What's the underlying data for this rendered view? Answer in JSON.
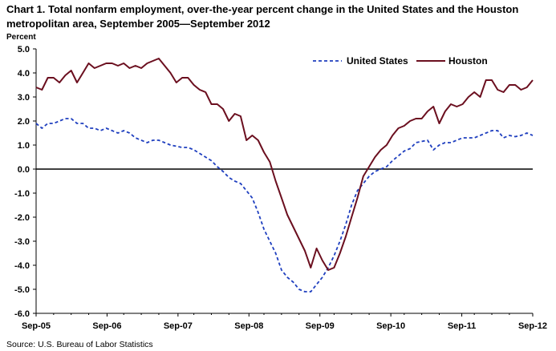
{
  "title": "Chart 1. Total nonfarm employment, over-the-year percent change in the United States and the Houston metropolitan area, September 2005—September 2012",
  "source": "Source: U.S. Bureau of Labor Statistics",
  "chart_data": {
    "type": "line",
    "title": "Chart 1. Total nonfarm employment, over-the-year percent change in the United States and the Houston metropolitan area, September 2005—September 2012",
    "ylabel": "Percent",
    "xlabel": "",
    "ylim": [
      -6.0,
      5.0
    ],
    "yticks": [
      "5.0",
      "4.0",
      "3.0",
      "2.0",
      "1.0",
      "0.0",
      "-1.0",
      "-2.0",
      "-3.0",
      "-4.0",
      "-5.0",
      "-6.0"
    ],
    "xticks": [
      "Sep-05",
      "Sep-06",
      "Sep-07",
      "Sep-08",
      "Sep-09",
      "Sep-10",
      "Sep-11",
      "Sep-12"
    ],
    "x_start": "Sep-05",
    "x_end": "Sep-12",
    "grid": false,
    "legend_position": "top-right",
    "series": [
      {
        "name": "United States",
        "color": "#1f3fbf",
        "dash": "dashed",
        "values": [
          1.9,
          1.7,
          1.9,
          1.9,
          2.0,
          2.1,
          2.1,
          1.9,
          1.9,
          1.7,
          1.7,
          1.6,
          1.7,
          1.6,
          1.5,
          1.6,
          1.5,
          1.3,
          1.2,
          1.1,
          1.2,
          1.2,
          1.1,
          1.0,
          0.95,
          0.9,
          0.9,
          0.8,
          0.65,
          0.5,
          0.35,
          0.1,
          -0.1,
          -0.35,
          -0.5,
          -0.6,
          -0.9,
          -1.2,
          -1.8,
          -2.5,
          -3.0,
          -3.5,
          -4.2,
          -4.5,
          -4.7,
          -5.0,
          -5.1,
          -5.1,
          -4.8,
          -4.5,
          -4.1,
          -3.6,
          -3.0,
          -2.3,
          -1.5,
          -0.9,
          -0.6,
          -0.3,
          -0.1,
          0.0,
          0.1,
          0.35,
          0.55,
          0.75,
          0.85,
          1.1,
          1.15,
          1.2,
          0.8,
          1.0,
          1.1,
          1.1,
          1.2,
          1.3,
          1.3,
          1.3,
          1.4,
          1.5,
          1.6,
          1.6,
          1.3,
          1.4,
          1.35,
          1.4,
          1.5,
          1.4
        ]
      },
      {
        "name": "Houston",
        "color": "#6b0f1f",
        "dash": "solid",
        "values": [
          3.4,
          3.3,
          3.8,
          3.8,
          3.6,
          3.9,
          4.1,
          3.6,
          4.0,
          4.4,
          4.2,
          4.3,
          4.4,
          4.4,
          4.3,
          4.4,
          4.2,
          4.3,
          4.2,
          4.4,
          4.5,
          4.6,
          4.3,
          4.0,
          3.6,
          3.8,
          3.8,
          3.5,
          3.3,
          3.2,
          2.7,
          2.7,
          2.5,
          2.0,
          2.3,
          2.2,
          1.2,
          1.4,
          1.2,
          0.7,
          0.3,
          -0.5,
          -1.2,
          -1.9,
          -2.4,
          -2.9,
          -3.4,
          -4.1,
          -3.3,
          -3.8,
          -4.2,
          -4.1,
          -3.5,
          -2.8,
          -2.0,
          -1.2,
          -0.3,
          0.1,
          0.5,
          0.8,
          1.0,
          1.4,
          1.7,
          1.8,
          2.0,
          2.1,
          2.1,
          2.4,
          2.6,
          1.9,
          2.4,
          2.7,
          2.6,
          2.7,
          3.0,
          3.2,
          3.0,
          3.7,
          3.7,
          3.3,
          3.2,
          3.5,
          3.5,
          3.3,
          3.4,
          3.7
        ]
      }
    ]
  }
}
